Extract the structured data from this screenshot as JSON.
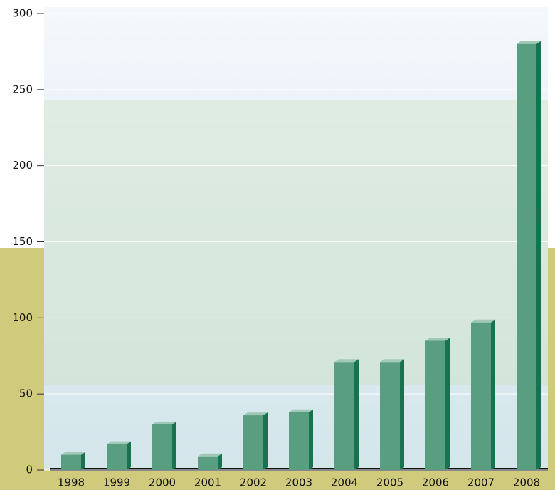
{
  "chart_data": {
    "type": "bar",
    "categories": [
      "1998",
      "1999",
      "2000",
      "2001",
      "2002",
      "2003",
      "2004",
      "2005",
      "2006",
      "2007",
      "2008"
    ],
    "values": [
      10,
      17,
      30,
      9,
      36,
      38,
      71,
      71,
      85,
      97,
      280
    ],
    "color": "#5a9e82",
    "ylim": [
      0,
      300
    ],
    "yticks": [
      0,
      50,
      100,
      150,
      200,
      250,
      300
    ],
    "grid": true
  }
}
